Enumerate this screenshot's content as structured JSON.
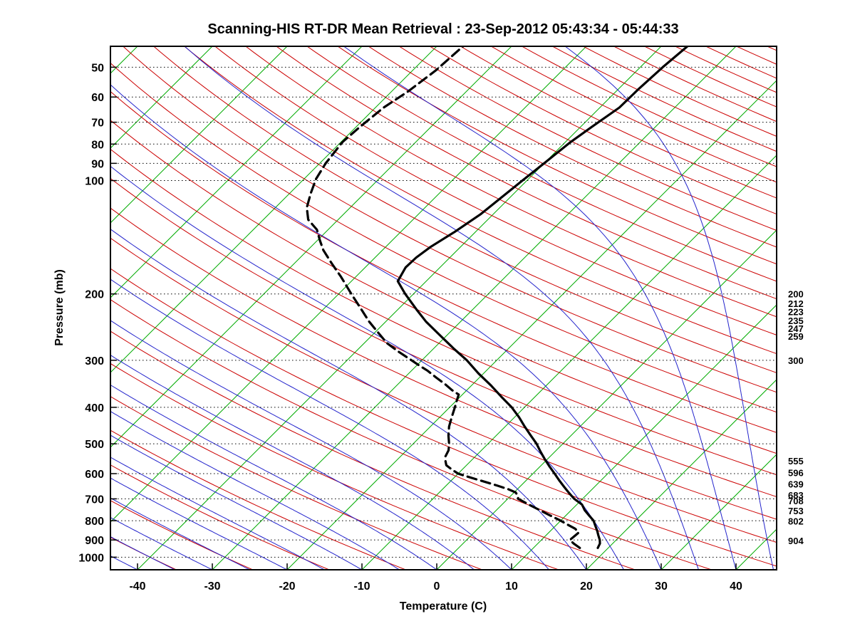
{
  "title": "Scanning-HIS RT-DR Mean Retrieval : 23-Sep-2012 05:43:34 - 05:44:33",
  "chart_data": {
    "type": "line",
    "variant": "skew-t-log-p-sounding",
    "xlabel": "Temperature (C)",
    "ylabel": "Pressure (mb)",
    "x_ticks": [
      -40,
      -30,
      -20,
      -10,
      0,
      10,
      20,
      30,
      40
    ],
    "y_ticks": [
      50,
      60,
      70,
      80,
      90,
      100,
      200,
      300,
      400,
      500,
      600,
      700,
      800,
      900,
      1000
    ],
    "x_range": [
      -43.6,
      45.4
    ],
    "pressure_range": [
      44,
      1080
    ],
    "skew_deg": 45,
    "grid": "dotted horizontal pressure lines",
    "legend_position": "none",
    "right_axis_labels": [
      "200",
      "212",
      "223",
      "235",
      "247",
      "259",
      "300",
      "555",
      "596",
      "639",
      "683",
      "708",
      "753",
      "802",
      "904"
    ],
    "right_axis_label_pressures": [
      200,
      212,
      223,
      235,
      247,
      259,
      300,
      555,
      596,
      639,
      683,
      708,
      753,
      802,
      904
    ],
    "series": [
      {
        "name": "temperature",
        "style": "solid",
        "color": "#000000",
        "points": [
          [
            945,
            18.6
          ],
          [
            920,
            18.3
          ],
          [
            900,
            17.8
          ],
          [
            875,
            17.0
          ],
          [
            850,
            16.2
          ],
          [
            825,
            15.3
          ],
          [
            800,
            14.4
          ],
          [
            775,
            13.1
          ],
          [
            750,
            11.8
          ],
          [
            725,
            10.7
          ],
          [
            700,
            8.9
          ],
          [
            675,
            7.4
          ],
          [
            650,
            5.9
          ],
          [
            625,
            4.4
          ],
          [
            600,
            2.9
          ],
          [
            575,
            1.3
          ],
          [
            550,
            -0.3
          ],
          [
            525,
            -1.9
          ],
          [
            500,
            -3.5
          ],
          [
            475,
            -5.4
          ],
          [
            450,
            -7.4
          ],
          [
            425,
            -9.4
          ],
          [
            400,
            -11.7
          ],
          [
            375,
            -14.5
          ],
          [
            350,
            -17.4
          ],
          [
            325,
            -20.7
          ],
          [
            300,
            -24.0
          ],
          [
            280,
            -27.2
          ],
          [
            260,
            -30.5
          ],
          [
            237,
            -34.6
          ],
          [
            220,
            -37.5
          ],
          [
            200,
            -41.1
          ],
          [
            185,
            -43.8
          ],
          [
            170,
            -44.6
          ],
          [
            160,
            -44.5
          ],
          [
            150,
            -44.0
          ],
          [
            137,
            -42.8
          ],
          [
            123,
            -41.7
          ],
          [
            112,
            -41.2
          ],
          [
            100,
            -40.6
          ],
          [
            90,
            -40.0
          ],
          [
            79,
            -39.3
          ],
          [
            72,
            -38.5
          ],
          [
            64,
            -37.4
          ],
          [
            57,
            -37.3
          ],
          [
            50,
            -37.0
          ],
          [
            44,
            -36.5
          ]
        ]
      },
      {
        "name": "dewpoint",
        "style": "dashed",
        "color": "#000000",
        "points": [
          [
            945,
            16.2
          ],
          [
            920,
            14.8
          ],
          [
            900,
            13.8
          ],
          [
            880,
            13.9
          ],
          [
            860,
            14.0
          ],
          [
            840,
            13.0
          ],
          [
            820,
            11.5
          ],
          [
            800,
            10.0
          ],
          [
            775,
            7.9
          ],
          [
            750,
            5.8
          ],
          [
            725,
            3.6
          ],
          [
            700,
            1.4
          ],
          [
            686,
            0.9
          ],
          [
            673,
            0.2
          ],
          [
            660,
            -1.2
          ],
          [
            646,
            -3.1
          ],
          [
            633,
            -5.0
          ],
          [
            620,
            -7.0
          ],
          [
            610,
            -8.5
          ],
          [
            600,
            -10.0
          ],
          [
            585,
            -11.4
          ],
          [
            570,
            -12.7
          ],
          [
            555,
            -13.4
          ],
          [
            540,
            -14.0
          ],
          [
            520,
            -14.4
          ],
          [
            500,
            -15.2
          ],
          [
            475,
            -16.4
          ],
          [
            450,
            -17.5
          ],
          [
            425,
            -18.4
          ],
          [
            400,
            -19.3
          ],
          [
            385,
            -19.9
          ],
          [
            370,
            -20.5
          ],
          [
            360,
            -22.0
          ],
          [
            348,
            -23.6
          ],
          [
            334,
            -25.7
          ],
          [
            320,
            -27.8
          ],
          [
            310,
            -29.6
          ],
          [
            300,
            -31.4
          ],
          [
            285,
            -34.2
          ],
          [
            270,
            -37.0
          ],
          [
            253,
            -39.6
          ],
          [
            237,
            -42.2
          ],
          [
            218,
            -45.2
          ],
          [
            200,
            -48.3
          ],
          [
            190,
            -50.1
          ],
          [
            180,
            -52.0
          ],
          [
            166,
            -55.0
          ],
          [
            153,
            -57.9
          ],
          [
            144,
            -59.7
          ],
          [
            135,
            -61.5
          ],
          [
            127,
            -64.0
          ],
          [
            118,
            -65.8
          ],
          [
            108,
            -67.2
          ],
          [
            99,
            -68.4
          ],
          [
            90,
            -69.2
          ],
          [
            79,
            -69.8
          ],
          [
            72,
            -69.5
          ],
          [
            64,
            -68.9
          ],
          [
            58,
            -67.8
          ],
          [
            51,
            -66.9
          ],
          [
            44,
            -66.5
          ]
        ]
      }
    ],
    "background": {
      "isotherms": {
        "color": "#00ab00",
        "min": -110,
        "max": 40,
        "step": 10
      },
      "dry_adiabats": {
        "color": "#cc0000",
        "theta_min": -60,
        "theta_max": 340,
        "step": 10
      },
      "moist_adiabats": {
        "color": "#2424cc",
        "t_start_min": -40,
        "t_start_max": 45,
        "step": 5
      },
      "pressure_lines": {
        "color": "#000000",
        "style": "dotted"
      }
    }
  }
}
